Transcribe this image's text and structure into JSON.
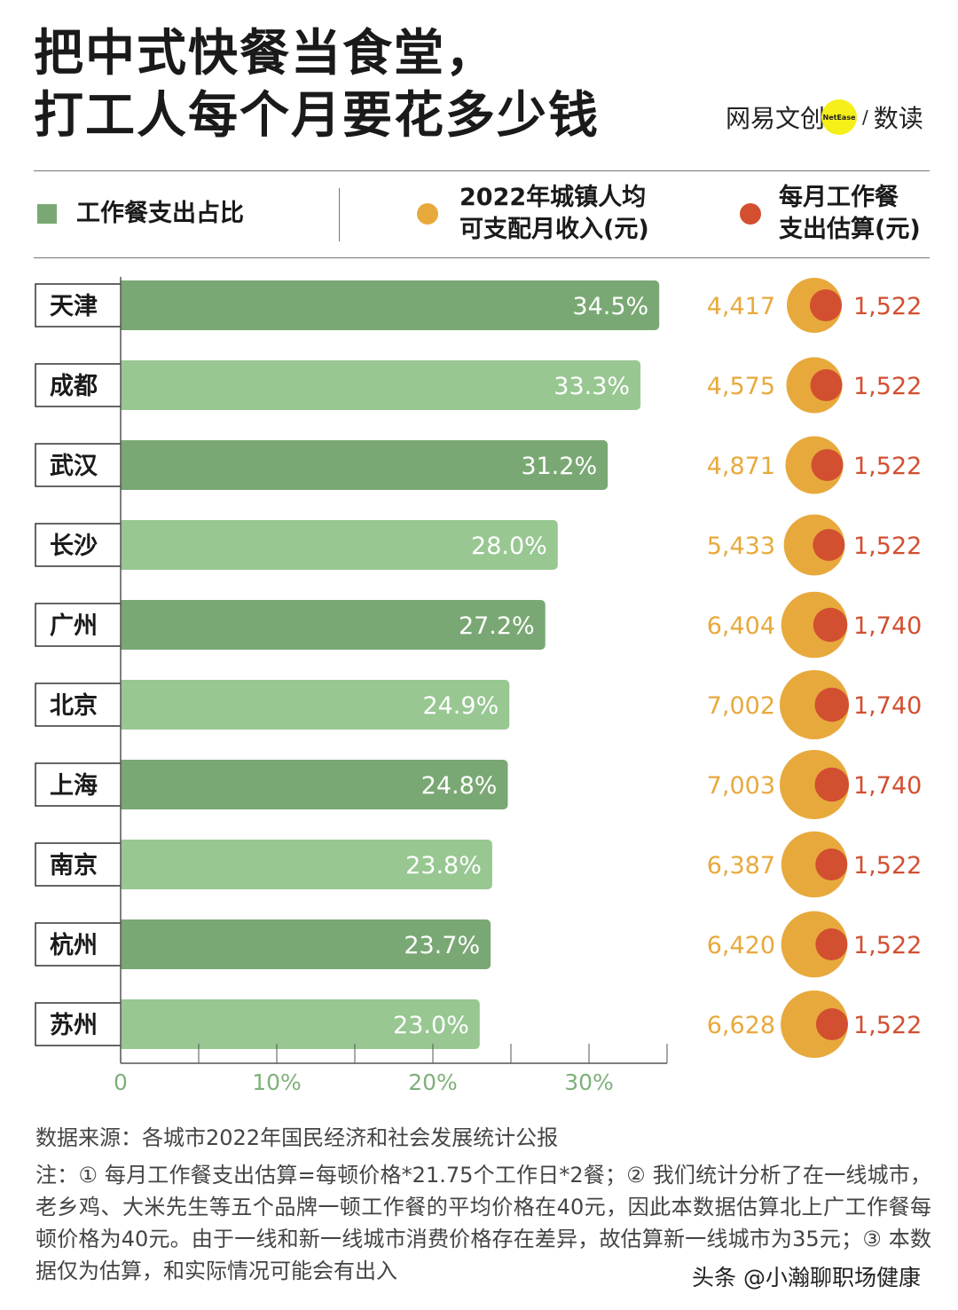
{
  "title_lines": [
    "把中式快餐当食堂，",
    "打工人每个月要花多少钱"
  ],
  "logo": {
    "left": "网易文创",
    "badge": "NetEase",
    "slash": "/",
    "right": "数读"
  },
  "legend": {
    "share": "工作餐支出占比",
    "income_l1": "2022年城镇人均",
    "income_l2": "可支配月收入(元)",
    "meal_l1": "每月工作餐",
    "meal_l2": "支出估算(元)"
  },
  "colors": {
    "bar_dark": "#7aa874",
    "bar_light": "#98c792",
    "income": "#e8a93c",
    "meal": "#d24f30",
    "axis_text": "#7fb07a"
  },
  "chart_data": {
    "type": "bar",
    "orientation": "horizontal",
    "categories": [
      "天津",
      "成都",
      "武汉",
      "长沙",
      "广州",
      "北京",
      "上海",
      "南京",
      "杭州",
      "苏州"
    ],
    "series": [
      {
        "name": "工作餐支出占比",
        "values": [
          34.5,
          33.3,
          31.2,
          28.0,
          27.2,
          24.9,
          24.8,
          23.8,
          23.7,
          23.0
        ],
        "labels": [
          "34.5%",
          "33.3%",
          "31.2%",
          "28.0%",
          "27.2%",
          "24.9%",
          "24.8%",
          "23.8%",
          "23.7%",
          "23.0%"
        ]
      },
      {
        "name": "2022年城镇人均可支配月收入(元)",
        "values": [
          4417,
          4575,
          4871,
          5433,
          6404,
          7002,
          7003,
          6387,
          6420,
          6628
        ],
        "labels": [
          "4,417",
          "4,575",
          "4,871",
          "5,433",
          "6,404",
          "7,002",
          "7,003",
          "6,387",
          "6,420",
          "6,628"
        ]
      },
      {
        "name": "每月工作餐支出估算(元)",
        "values": [
          1522,
          1522,
          1522,
          1522,
          1740,
          1740,
          1740,
          1522,
          1522,
          1522
        ],
        "labels": [
          "1,522",
          "1,522",
          "1,522",
          "1,522",
          "1,740",
          "1,740",
          "1,740",
          "1,522",
          "1,522",
          "1,522"
        ]
      }
    ],
    "xlim": [
      0,
      35
    ],
    "xticks": [
      "0",
      "10%",
      "20%",
      "30%"
    ]
  },
  "source": "数据来源：各城市2022年国民经济和社会发展统计公报",
  "note": "注：① 每月工作餐支出估算=每顿价格*21.75个工作日*2餐；② 我们统计分析了在一线城市，老乡鸡、大米先生等五个品牌一顿工作餐的平均价格在40元，因此本数据估算北上广工作餐每顿价格为40元。由于一线和新一线城市消费价格存在差异，故估算新一线城市为35元；③ 本数据仅为估算，和实际情况可能会有出入",
  "watermark": "头条 @小瀚聊职场健康"
}
